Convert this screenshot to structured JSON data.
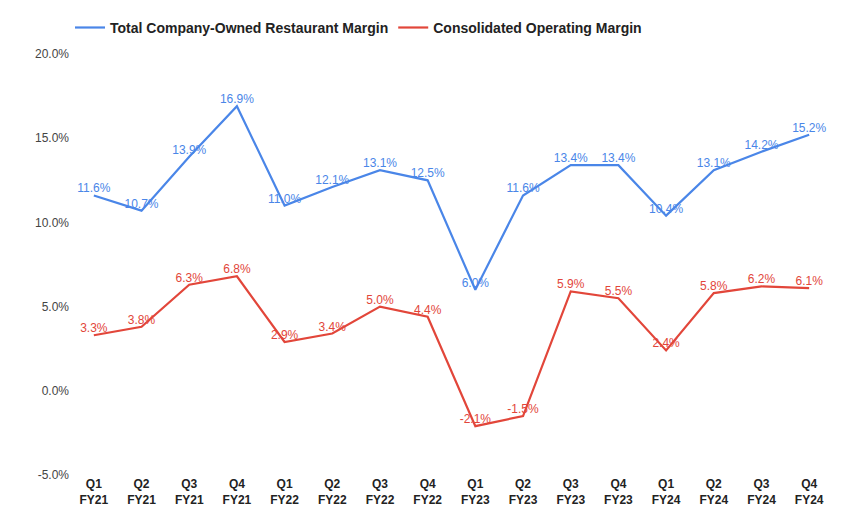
{
  "chart_data": {
    "type": "line",
    "categories": [
      "Q1 FY21",
      "Q2 FY21",
      "Q3 FY21",
      "Q4 FY21",
      "Q1 FY22",
      "Q2 FY22",
      "Q3 FY22",
      "Q4 FY22",
      "Q1 FY23",
      "Q2 FY23",
      "Q3 FY23",
      "Q4 FY23",
      "Q1 FY24",
      "Q2 FY24",
      "Q3 FY24",
      "Q4 FY24"
    ],
    "series": [
      {
        "name": "Total Company-Owned Restaurant Margin",
        "color": "#4a86e8",
        "values": [
          11.6,
          10.7,
          13.9,
          16.9,
          11.0,
          12.1,
          13.1,
          12.5,
          6.0,
          11.6,
          13.4,
          13.4,
          10.4,
          13.1,
          14.2,
          15.2
        ],
        "value_labels": [
          "11.6%",
          "10.7%",
          "13.9%",
          "16.9%",
          "11.0%",
          "12.1%",
          "13.1%",
          "12.5%",
          "6.0%",
          "11.6%",
          "13.4%",
          "13.4%",
          "10.4%",
          "13.1%",
          "14.2%",
          "15.2%"
        ]
      },
      {
        "name": "Consolidated Operating Margin",
        "color": "#e2463a",
        "values": [
          3.3,
          3.8,
          6.3,
          6.8,
          2.9,
          3.4,
          5.0,
          4.4,
          -2.1,
          -1.5,
          5.9,
          5.5,
          2.4,
          5.8,
          6.2,
          6.1
        ],
        "value_labels": [
          "3.3%",
          "3.8%",
          "6.3%",
          "6.8%",
          "2.9%",
          "3.4%",
          "5.0%",
          "4.4%",
          "-2.1%",
          "-1.5%",
          "5.9%",
          "5.5%",
          "2.4%",
          "5.8%",
          "6.2%",
          "6.1%"
        ]
      }
    ],
    "ylim": [
      -5,
      20
    ],
    "yticks": [
      {
        "value": -5,
        "label": "-5.0%"
      },
      {
        "value": 0,
        "label": "0.0%"
      },
      {
        "value": 5,
        "label": "5.0%"
      },
      {
        "value": 10,
        "label": "10.0%"
      },
      {
        "value": 15,
        "label": "15.0%"
      },
      {
        "value": 20,
        "label": "20.0%"
      }
    ],
    "grid": false,
    "legend": "top",
    "data_labels": true,
    "marker": "none",
    "line_style": "solid"
  }
}
